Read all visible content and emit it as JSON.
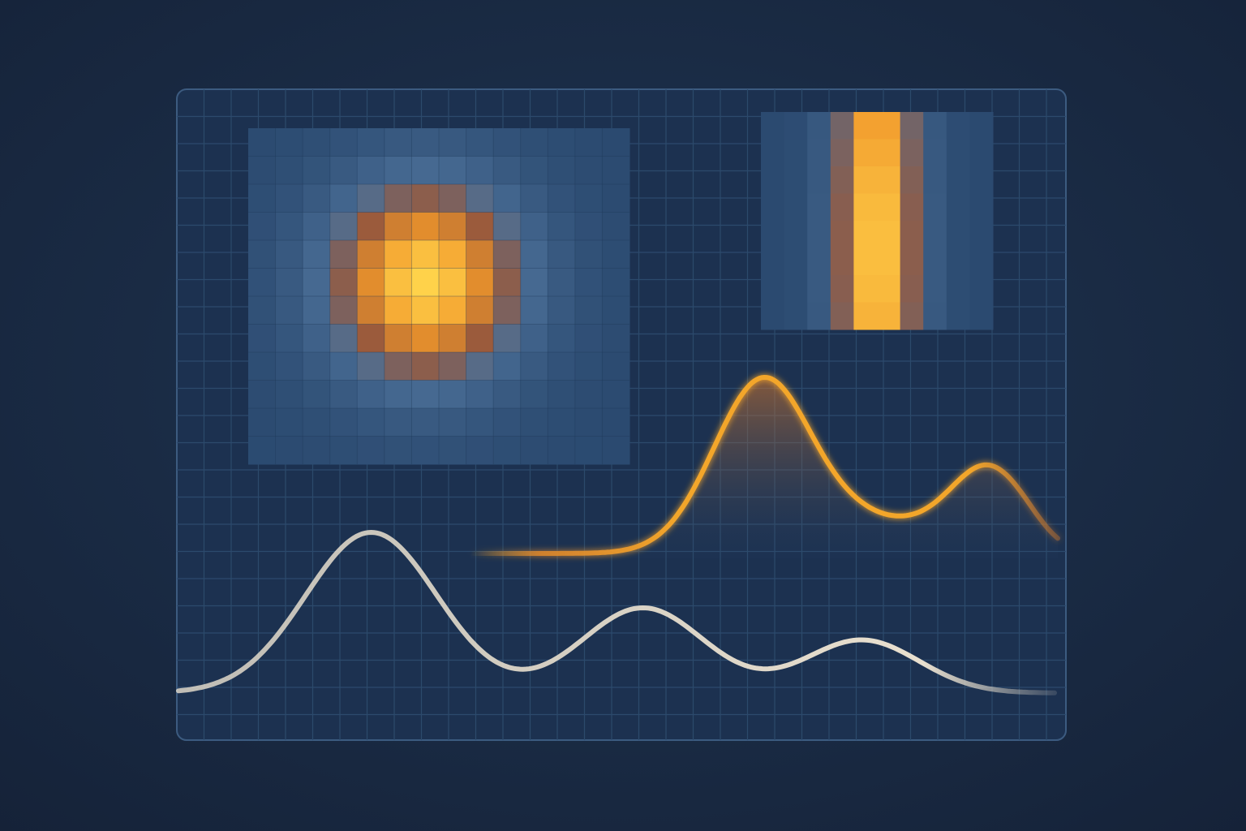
{
  "colors": {
    "background": "#1a2b42",
    "panel_fill": "#1d3350",
    "panel_border": "#3c5b80",
    "grid_line": "#2c4a6c",
    "heatmap_cold": "#2b4a70",
    "heatmap_mid": "#9a5a3c",
    "heatmap_warm": "#f0962a",
    "heatmap_hot": "#ffd24a",
    "orange_curve": "#f3a62b",
    "cream_curve": "#e9e0cf"
  },
  "scene": {
    "description_icon": "pixel-heatmap-and-waveform-illustration",
    "radial_heatmap": {
      "grid_cells": [
        14,
        12
      ],
      "peak_cell": [
        6,
        5
      ],
      "spread": 2.6
    },
    "vertical_band_heatmap": {
      "grid_cells": [
        10,
        8
      ],
      "peak_column": 4.5,
      "column_spread": 1.3,
      "row_peak": 4.5,
      "row_spread": 4.0
    },
    "orange_wave": {
      "peaks": [
        {
          "position": 0.5,
          "amplitude": 1.0,
          "width": 0.085
        },
        {
          "position": 0.88,
          "amplitude": 0.33,
          "width": 0.06
        }
      ]
    },
    "cream_wave": {
      "peaks": [
        {
          "position": 0.22,
          "amplitude": 1.0,
          "width": 0.075
        },
        {
          "position": 0.53,
          "amplitude": 0.53,
          "width": 0.07
        },
        {
          "position": 0.78,
          "amplitude": 0.33,
          "width": 0.065
        }
      ]
    }
  }
}
